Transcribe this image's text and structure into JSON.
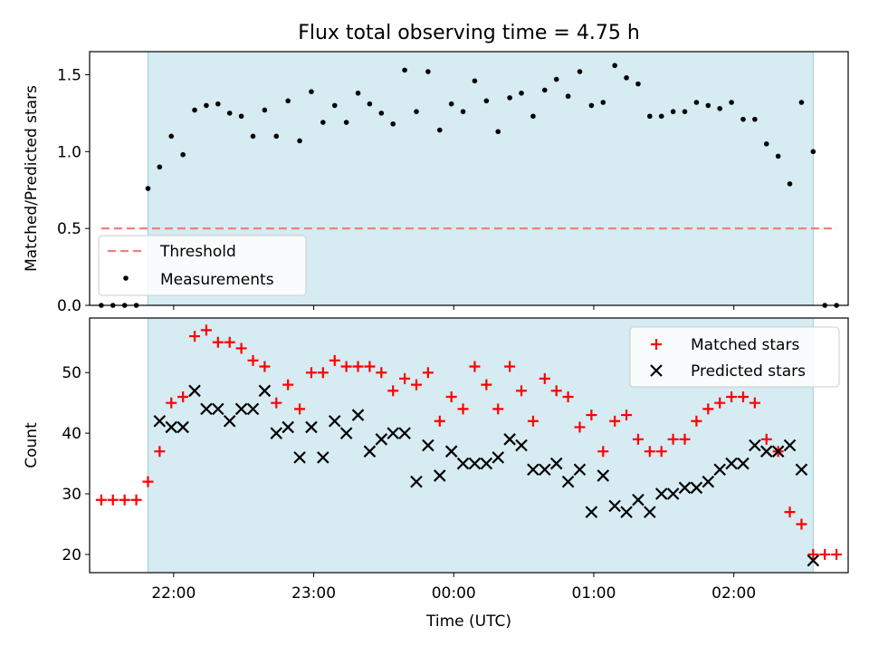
{
  "chart_data": [
    {
      "type": "scatter",
      "title": "Flux total observing time = 4.75 h",
      "ylabel": "Matched/Predicted stars",
      "xlabel": "",
      "ylim": [
        0,
        1.65
      ],
      "yticks": [
        0.0,
        0.5,
        1.0,
        1.5
      ],
      "ytick_labels": [
        "0.0",
        "0.5",
        "1.0",
        "1.5"
      ],
      "observing_window": {
        "start": "21:49",
        "end": "02:34"
      },
      "legend_position": "lower-left",
      "threshold": {
        "name": "Threshold",
        "value": 0.5,
        "x_start": "21:29",
        "x_end": "02:44",
        "color": "#f08080"
      },
      "series": [
        {
          "name": "Measurements",
          "color": "#000000",
          "x": [
            "21:29",
            "21:34",
            "21:39",
            "21:44",
            "21:49",
            "21:54",
            "21:59",
            "22:04",
            "22:09",
            "22:14",
            "22:19",
            "22:24",
            "22:29",
            "22:34",
            "22:39",
            "22:44",
            "22:49",
            "22:54",
            "22:59",
            "23:04",
            "23:09",
            "23:14",
            "23:19",
            "23:24",
            "23:29",
            "23:34",
            "23:39",
            "23:44",
            "23:49",
            "23:54",
            "23:59",
            "00:04",
            "00:09",
            "00:14",
            "00:19",
            "00:24",
            "00:29",
            "00:34",
            "00:39",
            "00:44",
            "00:49",
            "00:54",
            "00:59",
            "01:04",
            "01:09",
            "01:14",
            "01:19",
            "01:24",
            "01:29",
            "01:34",
            "01:39",
            "01:44",
            "01:49",
            "01:54",
            "01:59",
            "02:04",
            "02:09",
            "02:14",
            "02:19",
            "02:24",
            "02:29",
            "02:34",
            "02:39",
            "02:44"
          ],
          "y": [
            0.0,
            0.0,
            0.0,
            0.0,
            0.76,
            0.9,
            1.1,
            0.98,
            1.27,
            1.3,
            1.31,
            1.25,
            1.23,
            1.1,
            1.27,
            1.1,
            1.33,
            1.07,
            1.39,
            1.19,
            1.3,
            1.19,
            1.38,
            1.31,
            1.25,
            1.18,
            1.53,
            1.26,
            1.52,
            1.14,
            1.31,
            1.26,
            1.46,
            1.33,
            1.13,
            1.35,
            1.38,
            1.23,
            1.4,
            1.47,
            1.36,
            1.52,
            1.3,
            1.32,
            1.56,
            1.48,
            1.44,
            1.23,
            1.23,
            1.26,
            1.26,
            1.32,
            1.3,
            1.28,
            1.32,
            1.21,
            1.21,
            1.05,
            0.97,
            0.79,
            1.32,
            1.0,
            0.0,
            0.0
          ]
        }
      ]
    },
    {
      "type": "scatter",
      "title": "",
      "ylabel": "Count",
      "xlabel": "Time (UTC)",
      "ylim": [
        17,
        59
      ],
      "yticks": [
        20,
        30,
        40,
        50
      ],
      "ytick_labels": [
        "20",
        "30",
        "40",
        "50"
      ],
      "x_range": [
        "21:24",
        "02:49"
      ],
      "xtick_labels": [
        "22:00",
        "23:00",
        "00:00",
        "01:00",
        "02:00"
      ],
      "observing_window": {
        "start": "21:49",
        "end": "02:34"
      },
      "legend_position": "top-right",
      "series": [
        {
          "name": "Matched stars",
          "marker": "plus",
          "color": "#ff0000",
          "x": [
            "21:29",
            "21:34",
            "21:39",
            "21:44",
            "21:49",
            "21:54",
            "21:59",
            "22:04",
            "22:09",
            "22:14",
            "22:19",
            "22:24",
            "22:29",
            "22:34",
            "22:39",
            "22:44",
            "22:49",
            "22:54",
            "22:59",
            "23:04",
            "23:09",
            "23:14",
            "23:19",
            "23:24",
            "23:29",
            "23:34",
            "23:39",
            "23:44",
            "23:49",
            "23:54",
            "23:59",
            "00:04",
            "00:09",
            "00:14",
            "00:19",
            "00:24",
            "00:29",
            "00:34",
            "00:39",
            "00:44",
            "00:49",
            "00:54",
            "00:59",
            "01:04",
            "01:09",
            "01:14",
            "01:19",
            "01:24",
            "01:29",
            "01:34",
            "01:39",
            "01:44",
            "01:49",
            "01:54",
            "01:59",
            "02:04",
            "02:09",
            "02:14",
            "02:19",
            "02:24",
            "02:29",
            "02:34",
            "02:39",
            "02:44"
          ],
          "y": [
            29,
            29,
            29,
            29,
            32,
            37,
            45,
            46,
            56,
            57,
            55,
            55,
            54,
            52,
            51,
            45,
            48,
            44,
            50,
            50,
            52,
            51,
            51,
            51,
            50,
            47,
            49,
            48,
            50,
            42,
            46,
            44,
            51,
            48,
            44,
            51,
            47,
            42,
            49,
            47,
            46,
            41,
            43,
            37,
            42,
            43,
            39,
            37,
            37,
            39,
            39,
            42,
            44,
            45,
            46,
            46,
            45,
            39,
            37,
            27,
            25,
            20,
            20,
            20
          ]
        },
        {
          "name": "Predicted stars",
          "marker": "x",
          "color": "#000000",
          "x": [
            "21:54",
            "21:59",
            "22:04",
            "22:09",
            "22:14",
            "22:19",
            "22:24",
            "22:29",
            "22:34",
            "22:39",
            "22:44",
            "22:49",
            "22:54",
            "22:59",
            "23:04",
            "23:09",
            "23:14",
            "23:19",
            "23:24",
            "23:29",
            "23:34",
            "23:39",
            "23:44",
            "23:49",
            "23:54",
            "23:59",
            "00:04",
            "00:09",
            "00:14",
            "00:19",
            "00:24",
            "00:29",
            "00:34",
            "00:39",
            "00:44",
            "00:49",
            "00:54",
            "00:59",
            "01:04",
            "01:09",
            "01:14",
            "01:19",
            "01:24",
            "01:29",
            "01:34",
            "01:39",
            "01:44",
            "01:49",
            "01:54",
            "01:59",
            "02:04",
            "02:09",
            "02:14",
            "02:19",
            "02:24",
            "02:29",
            "02:34"
          ],
          "y": [
            42,
            41,
            41,
            47,
            44,
            44,
            42,
            44,
            44,
            47,
            40,
            41,
            36,
            41,
            36,
            42,
            40,
            43,
            37,
            39,
            40,
            40,
            32,
            38,
            33,
            37,
            35,
            35,
            35,
            36,
            39,
            38,
            34,
            34,
            35,
            32,
            34,
            27,
            33,
            28,
            27,
            29,
            27,
            30,
            30,
            31,
            31,
            32,
            34,
            35,
            35,
            38,
            37,
            37,
            38,
            34,
            19
          ]
        }
      ]
    }
  ]
}
